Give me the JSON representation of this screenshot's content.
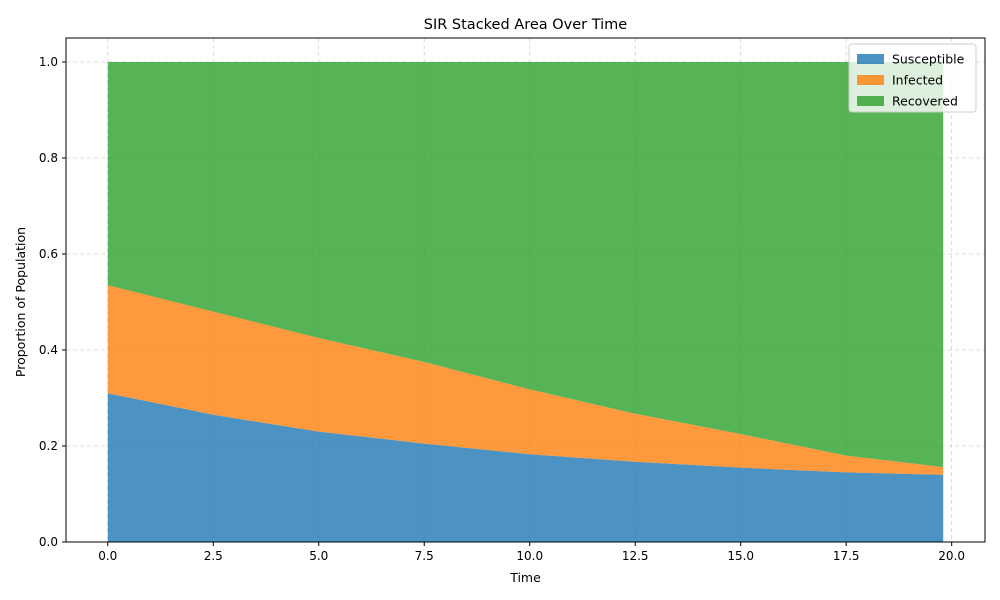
{
  "chart_data": {
    "type": "area",
    "title": "SIR Stacked Area Over Time",
    "xlabel": "Time",
    "ylabel": "Proportion of Population",
    "xlim": [
      -0.99,
      20.79
    ],
    "ylim": [
      0,
      1.05
    ],
    "xticks": [
      "0.0",
      "2.5",
      "5.0",
      "7.5",
      "10.0",
      "12.5",
      "15.0",
      "17.5",
      "20.0"
    ],
    "yticks": [
      "0.0",
      "0.2",
      "0.4",
      "0.6",
      "0.8",
      "1.0"
    ],
    "grid": true,
    "legend": "top-right",
    "stacked": true,
    "x": [
      0,
      2.5,
      5,
      7.5,
      10,
      12.5,
      15,
      17.5,
      19.8
    ],
    "series": [
      {
        "name": "Susceptible",
        "color": "#1f77b4",
        "values": [
          0.31,
          0.265,
          0.23,
          0.205,
          0.183,
          0.167,
          0.155,
          0.145,
          0.14
        ]
      },
      {
        "name": "Infected",
        "color": "#ff7f0e",
        "values": [
          0.225,
          0.215,
          0.195,
          0.17,
          0.135,
          0.1,
          0.07,
          0.035,
          0.016
        ]
      },
      {
        "name": "Recovered",
        "color": "#2ca02c",
        "values": [
          0.465,
          0.52,
          0.575,
          0.625,
          0.682,
          0.733,
          0.775,
          0.82,
          0.844
        ]
      }
    ]
  }
}
